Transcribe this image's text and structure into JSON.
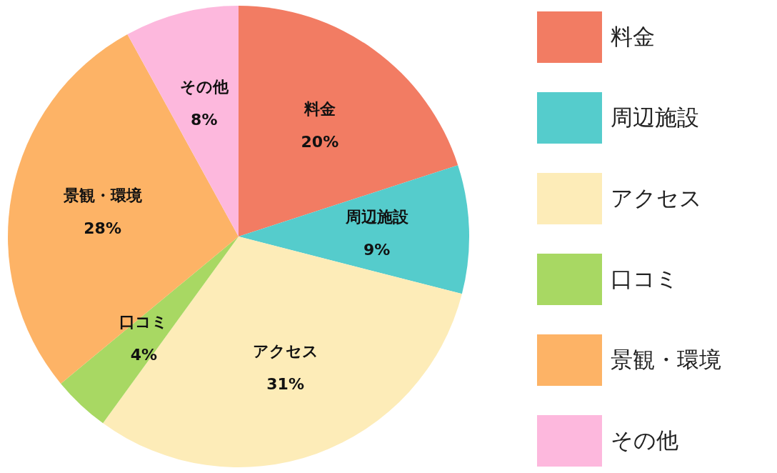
{
  "chart_data": {
    "type": "pie",
    "categories": [
      "料金",
      "周辺施設",
      "アクセス",
      "口コミ",
      "景観・環境",
      "その他"
    ],
    "values": [
      20,
      9,
      31,
      4,
      28,
      8
    ],
    "value_labels": [
      "20%",
      "9%",
      "31%",
      "4%",
      "28%",
      "8%"
    ],
    "colors": [
      "#f27c63",
      "#55cccc",
      "#fdecb8",
      "#a8d863",
      "#fdb366",
      "#fdb8dd"
    ],
    "legend": "right"
  }
}
